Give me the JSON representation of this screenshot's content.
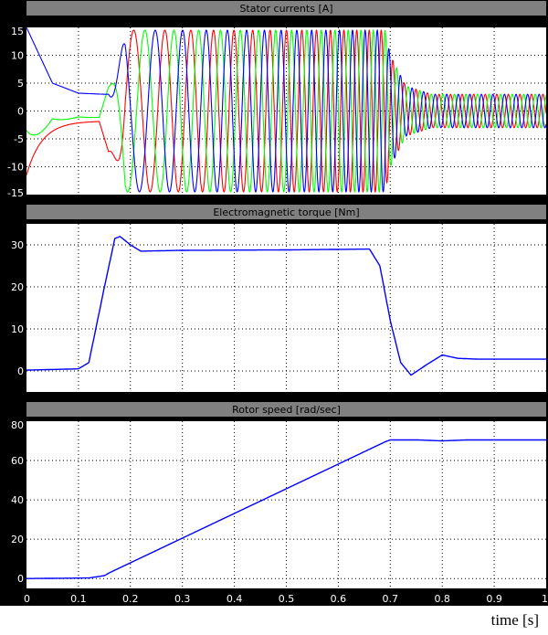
{
  "xlabel": "time [s]",
  "colors": {
    "background": "#000000",
    "axes": "#ffffff",
    "frame": "#808080",
    "grid": "#000000",
    "phase_a": "#ff0000",
    "phase_b": "#00ff00",
    "phase_c": "#0000ff",
    "torque": "#0000ff",
    "speed": "#0000ff"
  },
  "chart_data": [
    {
      "type": "line",
      "title": "Stator currents [A]",
      "xlim": [
        0,
        1
      ],
      "ylim": [
        -15,
        15
      ],
      "yticks": [
        15,
        10,
        5,
        0,
        -5,
        -10,
        -15
      ],
      "xticks": [
        0,
        0.1,
        0.2,
        0.3,
        0.4,
        0.5,
        0.6,
        0.7,
        0.8,
        0.9,
        1
      ],
      "grid": true,
      "series_colors": [
        "#ff0000",
        "#00ff00",
        "#0000ff"
      ],
      "envelope": {
        "startup_decay": [
          [
            0,
            15
          ],
          [
            0.05,
            5
          ],
          [
            0.1,
            3.2
          ],
          [
            0.15,
            3.0
          ]
        ],
        "run_up_amplitude": [
          [
            0.16,
            8
          ],
          [
            0.19,
            14.5
          ],
          [
            0.69,
            14.5
          ],
          [
            0.7,
            10
          ],
          [
            0.73,
            4.5
          ],
          [
            0.78,
            3
          ],
          [
            1,
            3
          ]
        ],
        "electrical_frequency_hz": [
          [
            0.16,
            12
          ],
          [
            0.7,
            45
          ],
          [
            1,
            45
          ]
        ]
      }
    },
    {
      "type": "line",
      "title": "Electromagnetic torque [Nm]",
      "xlim": [
        0,
        1
      ],
      "ylim": [
        -5,
        35
      ],
      "yticks": [
        30,
        20,
        10,
        0
      ],
      "xticks": [
        0,
        0.1,
        0.2,
        0.3,
        0.4,
        0.5,
        0.6,
        0.7,
        0.8,
        0.9,
        1
      ],
      "grid": true,
      "x": [
        0,
        0.1,
        0.12,
        0.15,
        0.17,
        0.18,
        0.2,
        0.22,
        0.3,
        0.5,
        0.66,
        0.68,
        0.7,
        0.72,
        0.74,
        0.77,
        0.8,
        0.83,
        0.87,
        1.0
      ],
      "values": [
        0.2,
        0.5,
        2,
        20,
        31.5,
        32,
        30,
        28.5,
        28.7,
        28.8,
        29,
        25,
        12,
        2,
        -1,
        1.5,
        3.8,
        3,
        2.8,
        2.8
      ]
    },
    {
      "type": "line",
      "title": "Rotor speed [rad/sec]",
      "xlim": [
        0,
        1
      ],
      "ylim": [
        -5,
        80
      ],
      "yticks": [
        80,
        60,
        40,
        20,
        0
      ],
      "xticks": [
        0,
        0.1,
        0.2,
        0.3,
        0.4,
        0.5,
        0.6,
        0.7,
        0.8,
        0.9,
        1
      ],
      "xtick_labels": [
        "0",
        "0.1",
        "0.2",
        "0.3",
        "0.4",
        "0.5",
        "0.6",
        "0.7",
        "0.8",
        "0.9",
        "1"
      ],
      "grid": true,
      "x": [
        0,
        0.12,
        0.15,
        0.16,
        0.69,
        0.7,
        0.75,
        0.8,
        0.85,
        1.0
      ],
      "values": [
        0,
        0.3,
        1.5,
        3,
        69.5,
        70.5,
        70.5,
        70,
        70.5,
        70.5
      ]
    }
  ]
}
